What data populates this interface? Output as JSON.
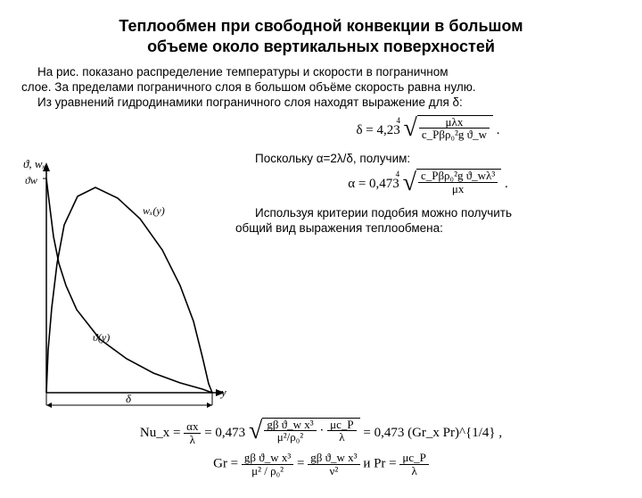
{
  "title_l1": "Теплообмен при свободной конвекции в большом",
  "title_l2": "объеме около вертикальных поверхностей",
  "intro_l1": "На рис. показано распределение температуры и скорости в пограничном",
  "intro_l2": "слое. За пределами пограничного слоя в большом объёме скорость равна нулю.",
  "intro_l3": "Из уравнений гидродинамики пограничного слоя находят выражение для δ:",
  "chart": {
    "y_axis_label": "ϑ, wₓ",
    "x_axis_label": "y",
    "theta_w": "ϑw",
    "curve_wx": "wₓ(y)",
    "curve_theta": "ϑ(y)",
    "delta": "δ",
    "axis_color": "#000000",
    "line_color": "#000000",
    "line_width": 1.6,
    "background": "#ffffff",
    "theta_curve": [
      [
        0,
        0
      ],
      [
        2,
        48
      ],
      [
        6,
        95
      ],
      [
        12,
        145
      ],
      [
        20,
        188
      ],
      [
        35,
        220
      ],
      [
        55,
        230
      ],
      [
        80,
        218
      ],
      [
        105,
        195
      ],
      [
        130,
        160
      ],
      [
        150,
        120
      ],
      [
        165,
        80
      ],
      [
        175,
        40
      ],
      [
        182,
        10
      ],
      [
        186,
        0
      ]
    ],
    "wx_curve": [
      [
        0,
        240
      ],
      [
        3,
        215
      ],
      [
        8,
        175
      ],
      [
        14,
        145
      ],
      [
        22,
        120
      ],
      [
        34,
        93
      ],
      [
        60,
        60
      ],
      [
        90,
        38
      ],
      [
        120,
        22
      ],
      [
        150,
        11
      ],
      [
        175,
        4
      ],
      [
        186,
        0
      ]
    ]
  },
  "eq1": {
    "lhs": "δ = 4,23",
    "num": "μλx",
    "den": "c_Pβρ₀²g ϑ_w"
  },
  "txt_mid": "Поскольку  α=2λ/δ,  получим:",
  "eq2": {
    "lhs": "α = 0,473",
    "num": "c_Pβρ₀²g ϑ_wλ³",
    "den": "μx"
  },
  "txt_after_l1": "Используя критерии подобия можно получить",
  "txt_after_l2": "общий вид выражения теплообмена:",
  "eq3": {
    "p1_num": "αx",
    "p1_den": "λ",
    "lead": "Nu_x = ",
    "mid": " = 0,473",
    "num": "gβ ϑ_w x³",
    "den": "μ²/ρ₀²",
    "sep": "·",
    "num2": "μc_P",
    "den2": "λ",
    "rhs": " = 0,473 (Gr_x Pr)^{1/4} ,"
  },
  "eq4": {
    "lead": "Gr = ",
    "n1": "gβ ϑ_w x³",
    "d1": "μ² / ρ₀²",
    "eq": " = ",
    "n2": "gβ ϑ_w x³",
    "d2": "ν²",
    "and": "  и  Pr = ",
    "n3": "μc_P",
    "d3": "λ"
  }
}
